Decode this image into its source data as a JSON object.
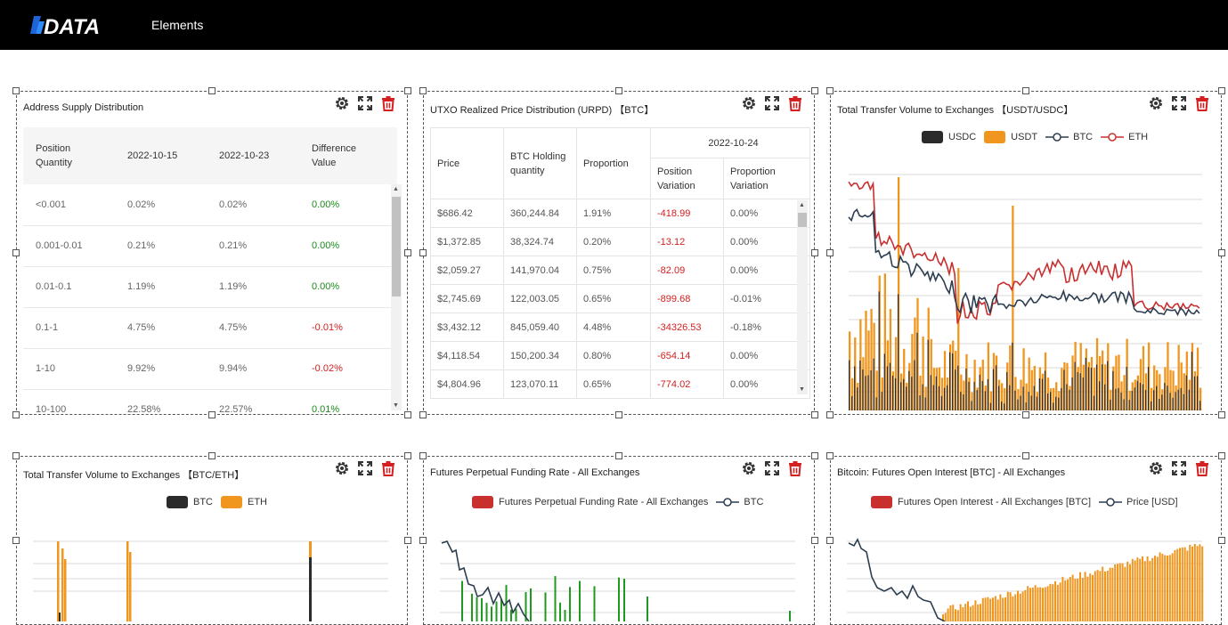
{
  "nav": {
    "logo_text": "DATA",
    "elements_label": "Elements"
  },
  "colors": {
    "usdc": "#2b2b2b",
    "usdt": "#f0961e",
    "btc_line": "#2d3e50",
    "eth_line": "#c83030",
    "funding": "#c83030",
    "positive": "#1a8a1a",
    "negative": "#d42020"
  },
  "icons": {
    "settings": "gear-icon",
    "expand": "expand-icon",
    "delete": "trash-icon"
  },
  "panels": {
    "asd": {
      "title": "Address Supply Distribution",
      "headers": [
        "Position\nQuantity",
        "2022-10-15",
        "2022-10-23",
        "Difference\nValue"
      ],
      "rows": [
        {
          "q": "<0.001",
          "a": "0.02%",
          "b": "0.02%",
          "d": "0.00%",
          "s": "pos"
        },
        {
          "q": "0.001-0.01",
          "a": "0.21%",
          "b": "0.21%",
          "d": "0.00%",
          "s": "pos"
        },
        {
          "q": "0.01-0.1",
          "a": "1.19%",
          "b": "1.19%",
          "d": "0.00%",
          "s": "pos"
        },
        {
          "q": "0.1-1",
          "a": "4.75%",
          "b": "4.75%",
          "d": "-0.01%",
          "s": "neg"
        },
        {
          "q": "1-10",
          "a": "9.92%",
          "b": "9.94%",
          "d": "-0.02%",
          "s": "neg"
        },
        {
          "q": "10-100",
          "a": "22.58%",
          "b": "22.57%",
          "d": "0.01%",
          "s": "pos"
        }
      ]
    },
    "urpd": {
      "title": "UTXO Realized Price Distribution (URPD) 【BTC】",
      "headers": {
        "price": "Price",
        "holding": "BTC Holding\nquantity",
        "proportion": "Proportion",
        "date": "2022-10-24",
        "pos_var": "Position\nVariation",
        "prop_var": "Proportion\nVariation"
      },
      "rows": [
        [
          "$686.42",
          "360,244.84",
          "1.91%",
          "-418.99",
          "0.00%"
        ],
        [
          "$1,372.85",
          "38,324.74",
          "0.20%",
          "-13.12",
          "0.00%"
        ],
        [
          "$2,059.27",
          "141,970.04",
          "0.75%",
          "-82.09",
          "0.00%"
        ],
        [
          "$2,745.69",
          "122,003.05",
          "0.65%",
          "-899.68",
          "-0.01%"
        ],
        [
          "$3,432.12",
          "845,059.40",
          "4.48%",
          "-34326.53",
          "-0.18%"
        ],
        [
          "$4,118.54",
          "150,200.34",
          "0.80%",
          "-654.14",
          "0.00%"
        ],
        [
          "$4,804.96",
          "123,070.11",
          "0.65%",
          "-774.02",
          "0.00%"
        ]
      ]
    },
    "ttv_usdt": {
      "title": "Total Transfer Volume to Exchanges 【USDT/USDC】",
      "legend": [
        "USDC",
        "USDT",
        "BTC",
        "ETH"
      ]
    },
    "ttv_btc": {
      "title": "Total Transfer Volume to Exchanges 【BTC/ETH】",
      "legend": [
        "BTC",
        "ETH"
      ]
    },
    "funding": {
      "title": "Futures Perpetual Funding Rate - All Exchanges",
      "legend": [
        "Futures Perpetual Funding Rate - All Exchanges",
        "BTC"
      ]
    },
    "oi": {
      "title": "Bitcoin: Futures Open Interest [BTC] - All Exchanges",
      "legend": [
        "Futures Open Interest - All Exchanges [BTC]",
        "Price [USD]"
      ]
    }
  }
}
